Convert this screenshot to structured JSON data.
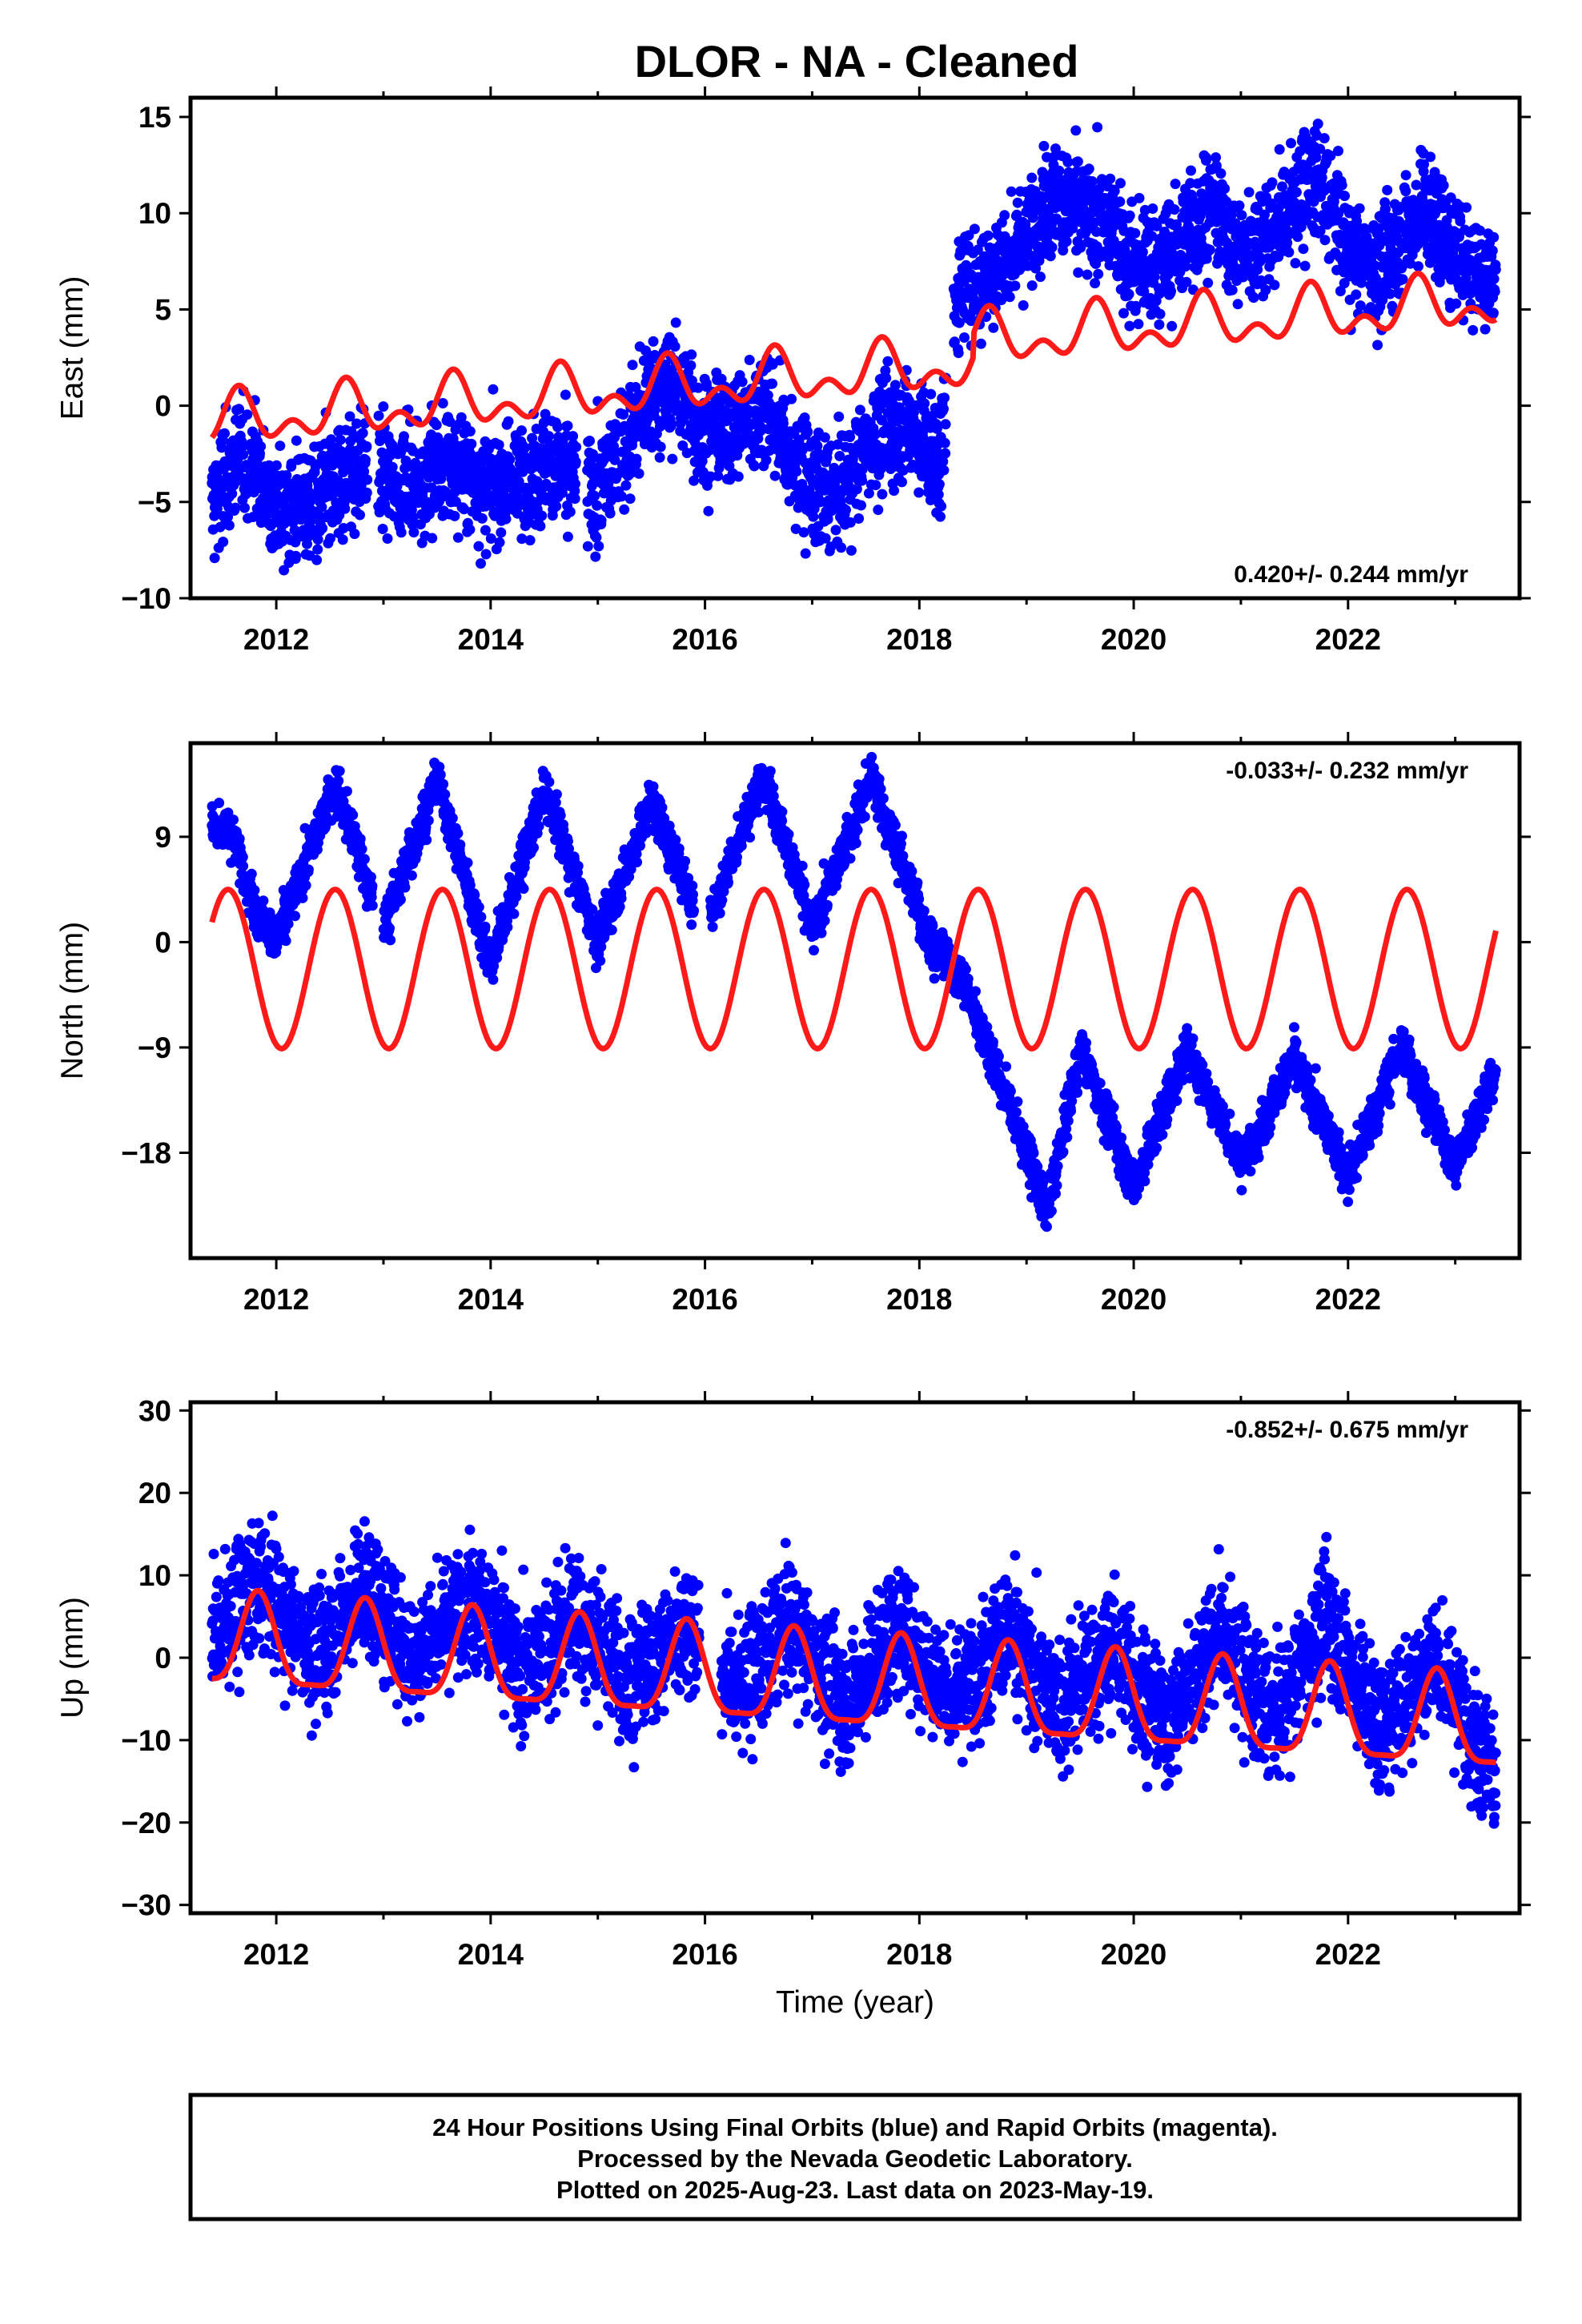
{
  "title": "DLOR  - NA - Cleaned",
  "footer": {
    "lines": [
      "24 Hour Positions Using Final Orbits (blue) and Rapid Orbits (magenta).",
      "Processed by the Nevada Geodetic Laboratory.",
      "Plotted on 2025-Aug-23. Last data on 2023-May-19."
    ]
  },
  "colors": {
    "points": "#0000ff",
    "model": "#ff1a1a",
    "frame": "#000000"
  },
  "chart_data": [
    {
      "type": "scatter",
      "name": "east",
      "title": "",
      "xlabel": "",
      "ylabel": "East (mm)",
      "xlim": [
        2011.2,
        2023.6
      ],
      "ylim": [
        -10,
        16
      ],
      "x_ticks": [
        2012,
        2014,
        2016,
        2018,
        2020,
        2022
      ],
      "y_ticks": [
        -10,
        -5,
        0,
        5,
        10,
        15
      ],
      "rate_label": "0.420+/- 0.244 mm/yr",
      "rate_position": "bottom-right",
      "grid": false,
      "model": {
        "type": "line",
        "offset": -0.85,
        "rate": 0.42,
        "ref_year": 2011.4,
        "annual_amplitude": 1.0,
        "peak_phase": 0.65,
        "semiannual_amplitude": 0.8,
        "step": {
          "year": 2018.5,
          "size": 1.2
        }
      },
      "observations": {
        "start": 2011.4,
        "end": 2023.38,
        "knots": [
          [
            2011.4,
            -5
          ],
          [
            2011.6,
            -3
          ],
          [
            2011.8,
            -3
          ],
          [
            2012.0,
            -5.5
          ],
          [
            2012.4,
            -5
          ],
          [
            2012.8,
            -3
          ],
          [
            2013.2,
            -4
          ],
          [
            2013.6,
            -3
          ],
          [
            2014.0,
            -4.5
          ],
          [
            2014.5,
            -3
          ],
          [
            2015.0,
            -4.5
          ],
          [
            2015.5,
            0.5
          ],
          [
            2015.7,
            1
          ],
          [
            2016.0,
            -1.5
          ],
          [
            2016.6,
            0
          ],
          [
            2016.8,
            -3
          ],
          [
            2017.0,
            -4
          ],
          [
            2017.2,
            -5
          ],
          [
            2017.6,
            -1.5
          ],
          [
            2017.9,
            -1
          ],
          [
            2018.2,
            -3
          ],
          [
            2018.35,
            6
          ],
          [
            2018.7,
            7
          ],
          [
            2018.9,
            8
          ],
          [
            2019.2,
            11
          ],
          [
            2019.5,
            10
          ],
          [
            2019.8,
            9.5
          ],
          [
            2020.0,
            7
          ],
          [
            2020.4,
            8
          ],
          [
            2020.7,
            10.5
          ],
          [
            2021.0,
            8
          ],
          [
            2021.3,
            9
          ],
          [
            2021.7,
            12
          ],
          [
            2022.0,
            8
          ],
          [
            2022.3,
            7
          ],
          [
            2022.7,
            10.5
          ],
          [
            2023.0,
            8
          ],
          [
            2023.38,
            6.5
          ]
        ],
        "noise_sd": 1.5,
        "gaps": [
          [
            2012.85,
            2012.95
          ],
          [
            2014.8,
            2014.9
          ],
          [
            2018.25,
            2018.32
          ]
        ]
      }
    },
    {
      "type": "scatter",
      "name": "north",
      "title": "",
      "xlabel": "",
      "ylabel": "North (mm)",
      "xlim": [
        2011.2,
        2023.6
      ],
      "ylim": [
        -27,
        17
      ],
      "x_ticks": [
        2012,
        2014,
        2016,
        2018,
        2020,
        2022
      ],
      "y_ticks": [
        -18,
        -9,
        0,
        9
      ],
      "rate_label": "-0.033+/- 0.232 mm/yr",
      "rate_position": "top-right",
      "grid": false,
      "model": {
        "type": "line",
        "offset": -2.3,
        "rate": 0.0,
        "ref_year": 2011.4,
        "annual_amplitude": 6.8,
        "peak_phase": 0.55,
        "semiannual_amplitude": 0.0,
        "step": {
          "year": 2018.45,
          "size": 0.0
        }
      },
      "observations": {
        "start": 2011.4,
        "end": 2023.38,
        "knots": [
          [
            2011.4,
            10
          ],
          [
            2011.6,
            9
          ],
          [
            2011.8,
            3
          ],
          [
            2012.0,
            0
          ],
          [
            2012.55,
            13.5
          ],
          [
            2013.0,
            1
          ],
          [
            2013.5,
            14
          ],
          [
            2014.0,
            -2
          ],
          [
            2014.5,
            13
          ],
          [
            2015.0,
            0
          ],
          [
            2015.5,
            12
          ],
          [
            2016.0,
            1
          ],
          [
            2016.55,
            14.5
          ],
          [
            2017.0,
            1
          ],
          [
            2017.55,
            14
          ],
          [
            2018.1,
            0
          ],
          [
            2018.4,
            -3
          ],
          [
            2018.6,
            -8
          ],
          [
            2019.2,
            -23
          ],
          [
            2019.5,
            -9
          ],
          [
            2020.0,
            -21
          ],
          [
            2020.5,
            -9
          ],
          [
            2021.0,
            -19
          ],
          [
            2021.5,
            -10
          ],
          [
            2022.0,
            -20
          ],
          [
            2022.5,
            -9
          ],
          [
            2023.0,
            -19
          ],
          [
            2023.38,
            -11
          ]
        ],
        "noise_sd": 1.0,
        "gaps": [
          [
            2012.9,
            2013.0
          ],
          [
            2015.9,
            2016.05
          ]
        ]
      }
    },
    {
      "type": "scatter",
      "name": "up",
      "title": "",
      "xlabel": "Time (year)",
      "ylabel": "Up (mm)",
      "xlim": [
        2011.2,
        2023.6
      ],
      "ylim": [
        -31,
        31
      ],
      "x_ticks": [
        2012,
        2014,
        2016,
        2018,
        2020,
        2022
      ],
      "y_ticks": [
        -30,
        -20,
        -10,
        0,
        10,
        20,
        30
      ],
      "rate_label": "-0.852+/- 0.675 mm/yr",
      "rate_position": "top-right",
      "grid": false,
      "model": {
        "type": "line",
        "offset": 1.5,
        "rate": -0.852,
        "ref_year": 2011.4,
        "annual_amplitude": 5.5,
        "peak_phase": 0.83,
        "semiannual_amplitude": 1.5,
        "step": {
          "year": 2018.45,
          "size": 0.0
        }
      },
      "observations": {
        "start": 2011.4,
        "end": 2023.38,
        "knots": [
          [
            2011.4,
            2
          ],
          [
            2011.8,
            9
          ],
          [
            2012.4,
            0
          ],
          [
            2012.8,
            9
          ],
          [
            2013.3,
            0
          ],
          [
            2013.8,
            8
          ],
          [
            2014.3,
            -2
          ],
          [
            2014.8,
            5
          ],
          [
            2015.3,
            -3
          ],
          [
            2015.8,
            4
          ],
          [
            2016.3,
            -4
          ],
          [
            2016.8,
            4
          ],
          [
            2017.3,
            -6
          ],
          [
            2017.8,
            4
          ],
          [
            2018.3,
            -5
          ],
          [
            2018.8,
            3
          ],
          [
            2019.3,
            -6
          ],
          [
            2019.8,
            1
          ],
          [
            2020.3,
            -8
          ],
          [
            2020.8,
            3
          ],
          [
            2021.3,
            -8
          ],
          [
            2021.8,
            5
          ],
          [
            2022.3,
            -9
          ],
          [
            2022.8,
            0
          ],
          [
            2023.38,
            -14
          ]
        ],
        "noise_sd": 4.0,
        "gaps": [
          [
            2015.95,
            2016.15
          ]
        ]
      }
    }
  ]
}
